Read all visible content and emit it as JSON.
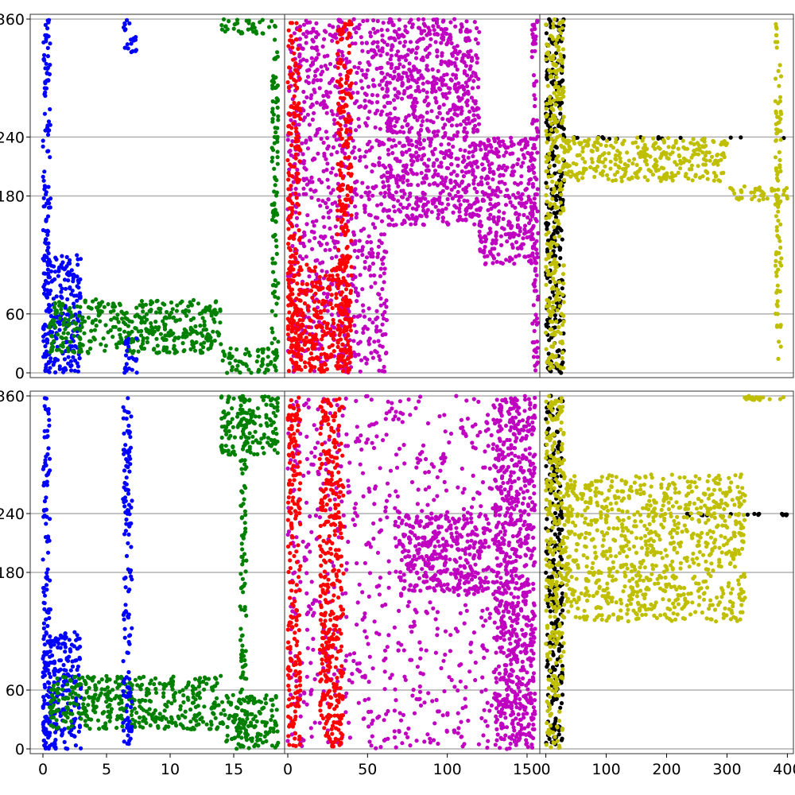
{
  "chart_data": {
    "type": "scatter",
    "layout": "2 rows x 3 columns, shared y axis per row, shared x axis per column",
    "ylim": [
      0,
      360
    ],
    "y_ticks": [
      0,
      60,
      180,
      240,
      360
    ],
    "grid": "horizontal lines at y ticks",
    "columns": [
      {
        "xlim": [
          -1,
          19
        ],
        "x_ticks": [
          0,
          5,
          10,
          15
        ],
        "x_tick_labels": [
          "0",
          "5",
          "10",
          "15"
        ]
      },
      {
        "xlim": [
          -2,
          158
        ],
        "x_ticks": [
          0,
          50,
          100,
          150
        ],
        "x_tick_labels": [
          "0",
          "50",
          "100",
          "150"
        ]
      },
      {
        "xlim": [
          -10,
          410
        ],
        "x_ticks": [
          0,
          100,
          200,
          300,
          400
        ],
        "x_tick_labels": [
          "0",
          "100",
          "200",
          "300",
          "400"
        ]
      }
    ],
    "panels": [
      {
        "row": 0,
        "col": 0,
        "series": [
          {
            "color": "#0000ff",
            "x_range": [
              0,
              0.6
            ],
            "y_range": [
              0,
              360
            ]
          },
          {
            "color": "#0000ff",
            "x_range": [
              0,
              3
            ],
            "y_range": [
              0,
              120
            ]
          },
          {
            "color": "#008000",
            "x_range": [
              0.5,
              14
            ],
            "y_range": [
              20,
              75
            ]
          },
          {
            "color": "#0000ff",
            "x_range": [
              6.3,
              7.4
            ],
            "y_range": [
              0,
              40
            ]
          },
          {
            "color": "#0000ff",
            "x_range": [
              6.3,
              7.4
            ],
            "y_range": [
              326,
              360
            ]
          },
          {
            "color": "#008000",
            "x_range": [
              14,
              18.5
            ],
            "y_range": [
              0,
              25
            ]
          },
          {
            "color": "#008000",
            "x_range": [
              14,
              18.5
            ],
            "y_range": [
              345,
              360
            ]
          },
          {
            "color": "#008000",
            "x_range": [
              18,
              18.5
            ],
            "y_range": [
              0,
              340
            ]
          }
        ]
      },
      {
        "row": 0,
        "col": 1,
        "series": [
          {
            "color": "#c000c0",
            "x_range": [
              0,
              62
            ],
            "y_range": [
              0,
              360
            ]
          },
          {
            "color": "#c000c0",
            "x_range": [
              62,
              120
            ],
            "y_range": [
              150,
              360
            ]
          },
          {
            "color": "#c000c0",
            "x_range": [
              120,
              155
            ],
            "y_range": [
              110,
              240
            ]
          },
          {
            "color": "#c000c0",
            "x_range": [
              153,
              157
            ],
            "y_range": [
              0,
              360
            ]
          },
          {
            "color": "#ff0000",
            "x_range": [
              0,
              8
            ],
            "y_range": [
              0,
              360
            ]
          },
          {
            "color": "#ff0000",
            "x_range": [
              0,
              40
            ],
            "y_range": [
              0,
              110
            ]
          },
          {
            "color": "#ff0000",
            "x_range": [
              31,
              40
            ],
            "y_range": [
              0,
              360
            ]
          }
        ]
      },
      {
        "row": 0,
        "col": 2,
        "series": [
          {
            "color": "#000000",
            "x_range": [
              0,
              30
            ],
            "y_range": [
              0,
              360
            ]
          },
          {
            "color": "#000000",
            "x_range": [
              30,
              400
            ],
            "y_range": [
              238,
              240
            ]
          },
          {
            "color": "#bfbf00",
            "x_range": [
              0,
              30
            ],
            "y_range": [
              0,
              360
            ]
          },
          {
            "color": "#bfbf00",
            "x_range": [
              30,
              300
            ],
            "y_range": [
              195,
              240
            ]
          },
          {
            "color": "#bfbf00",
            "x_range": [
              300,
              400
            ],
            "y_range": [
              175,
              190
            ]
          },
          {
            "color": "#bfbf00",
            "x_range": [
              380,
              390
            ],
            "y_range": [
              0,
              360
            ]
          }
        ]
      },
      {
        "row": 1,
        "col": 0,
        "series": [
          {
            "color": "#0000ff",
            "x_range": [
              0,
              0.6
            ],
            "y_range": [
              0,
              360
            ]
          },
          {
            "color": "#0000ff",
            "x_range": [
              0,
              3
            ],
            "y_range": [
              0,
              120
            ]
          },
          {
            "color": "#008000",
            "x_range": [
              0.5,
              14
            ],
            "y_range": [
              20,
              75
            ]
          },
          {
            "color": "#0000ff",
            "x_range": [
              6.3,
              7
            ],
            "y_range": [
              0,
              360
            ]
          },
          {
            "color": "#008000",
            "x_range": [
              14,
              18.5
            ],
            "y_range": [
              0,
              55
            ]
          },
          {
            "color": "#008000",
            "x_range": [
              14,
              18.5
            ],
            "y_range": [
              300,
              360
            ]
          },
          {
            "color": "#008000",
            "x_range": [
              15.5,
              16
            ],
            "y_range": [
              0,
              360
            ]
          }
        ]
      },
      {
        "row": 1,
        "col": 1,
        "series": [
          {
            "color": "#c000c0",
            "x_range": [
              0,
              155
            ],
            "y_range": [
              0,
              360
            ]
          },
          {
            "color": "#c000c0",
            "x_range": [
              70,
              125
            ],
            "y_range": [
              160,
              240
            ]
          },
          {
            "color": "#c000c0",
            "x_range": [
              130,
              155
            ],
            "y_range": [
              0,
              360
            ]
          },
          {
            "color": "#ff0000",
            "x_range": [
              0,
              8
            ],
            "y_range": [
              0,
              360
            ]
          },
          {
            "color": "#ff0000",
            "x_range": [
              20,
              35
            ],
            "y_range": [
              0,
              360
            ]
          }
        ]
      },
      {
        "row": 1,
        "col": 2,
        "series": [
          {
            "color": "#000000",
            "x_range": [
              0,
              28
            ],
            "y_range": [
              0,
              360
            ]
          },
          {
            "color": "#000000",
            "x_range": [
              230,
              400
            ],
            "y_range": [
              238,
              240
            ]
          },
          {
            "color": "#bfbf00",
            "x_range": [
              0,
              30
            ],
            "y_range": [
              0,
              360
            ]
          },
          {
            "color": "#bfbf00",
            "x_range": [
              30,
              330
            ],
            "y_range": [
              130,
              280
            ]
          },
          {
            "color": "#bfbf00",
            "x_range": [
              325,
              400
            ],
            "y_range": [
              355,
              360
            ]
          }
        ]
      }
    ]
  }
}
